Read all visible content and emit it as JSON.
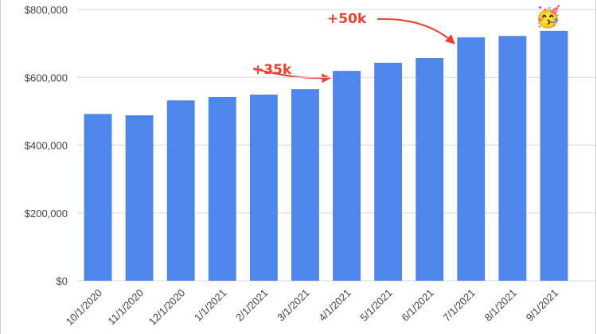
{
  "chart_data": {
    "type": "bar",
    "categories": [
      "10/1/2020",
      "11/1/2020",
      "12/1/2020",
      "1/1/2021",
      "2/1/2021",
      "3/1/2021",
      "4/1/2021",
      "5/1/2021",
      "6/1/2021",
      "7/1/2021",
      "8/1/2021",
      "9/1/2021"
    ],
    "values": [
      492000,
      488000,
      532000,
      542000,
      549000,
      565000,
      619000,
      643000,
      657000,
      718000,
      722000,
      737000
    ],
    "color": "#4f86ec",
    "ylim": [
      0,
      800000
    ],
    "yticks": [
      {
        "value": 0,
        "label": "$0"
      },
      {
        "value": 200000,
        "label": "$200,000"
      },
      {
        "value": 400000,
        "label": "$400,000"
      },
      {
        "value": 600000,
        "label": "$600,000"
      },
      {
        "value": 800000,
        "label": "$800,000"
      }
    ],
    "grid": true,
    "annotations": [
      {
        "text": "+35k"
      },
      {
        "text": "+50k"
      },
      {
        "text": "🥳"
      }
    ]
  }
}
